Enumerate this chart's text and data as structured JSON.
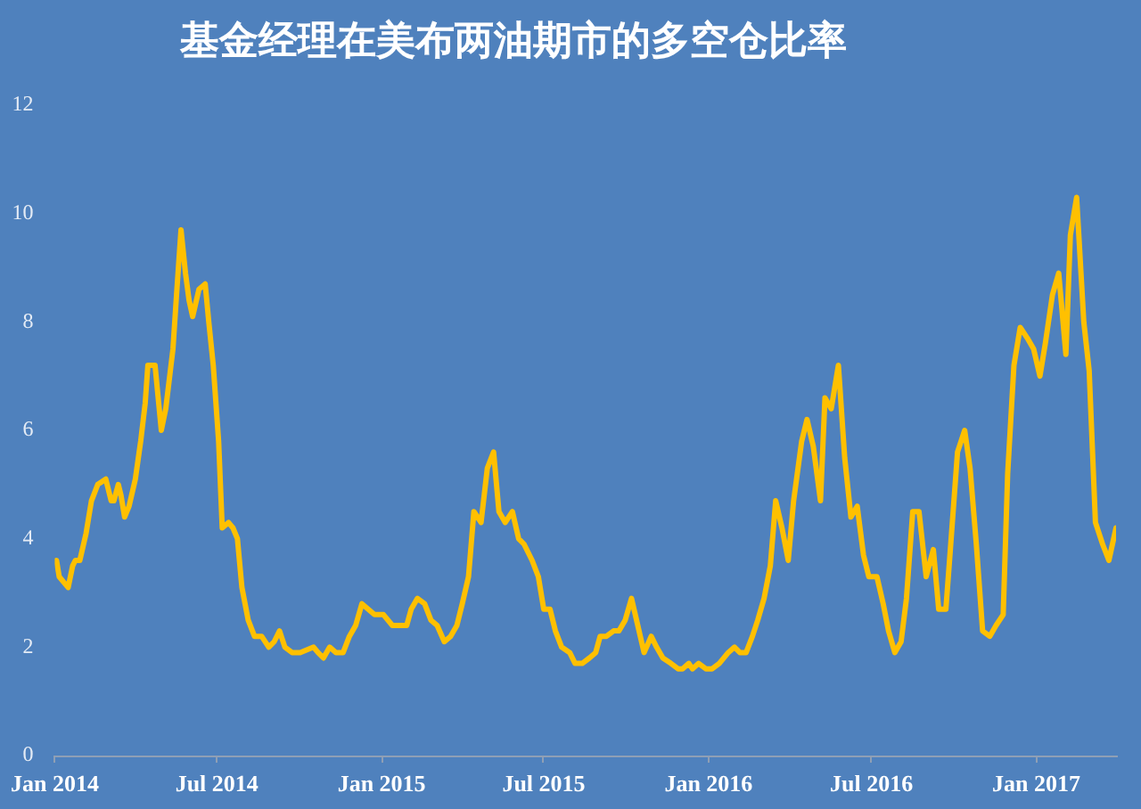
{
  "chart_data": {
    "type": "line",
    "title": "基金经理在美布两油期市的多空仓比率",
    "x": [
      "2014-01-03",
      "2014-01-06",
      "2014-01-11",
      "2014-01-16",
      "2014-01-21",
      "2014-01-24",
      "2014-01-29",
      "2014-02-05",
      "2014-02-11",
      "2014-02-18",
      "2014-02-27",
      "2014-03-05",
      "2014-03-08",
      "2014-03-13",
      "2014-03-16",
      "2014-03-20",
      "2014-03-25",
      "2014-04-01",
      "2014-04-07",
      "2014-04-12",
      "2014-04-15",
      "2014-04-23",
      "2014-04-30",
      "2014-05-05",
      "2014-05-13",
      "2014-05-17",
      "2014-05-22",
      "2014-05-27",
      "2014-05-31",
      "2014-06-04",
      "2014-06-11",
      "2014-06-18",
      "2014-06-22",
      "2014-06-27",
      "2014-07-03",
      "2014-07-07",
      "2014-07-14",
      "2014-07-19",
      "2014-07-24",
      "2014-07-29",
      "2014-08-05",
      "2014-08-12",
      "2014-08-20",
      "2014-08-28",
      "2014-09-03",
      "2014-09-09",
      "2014-09-15",
      "2014-09-23",
      "2014-10-02",
      "2014-10-17",
      "2014-10-22",
      "2014-10-28",
      "2014-11-04",
      "2014-11-11",
      "2014-11-19",
      "2014-11-26",
      "2014-12-03",
      "2014-12-10",
      "2014-12-17",
      "2014-12-24",
      "2015-01-03",
      "2015-01-13",
      "2015-01-29",
      "2015-02-03",
      "2015-02-10",
      "2015-02-18",
      "2015-02-25",
      "2015-03-04",
      "2015-03-12",
      "2015-03-19",
      "2015-03-26",
      "2015-04-01",
      "2015-04-08",
      "2015-04-14",
      "2015-04-22",
      "2015-04-29",
      "2015-05-06",
      "2015-05-12",
      "2015-05-19",
      "2015-05-27",
      "2015-06-03",
      "2015-06-09",
      "2015-06-18",
      "2015-06-25",
      "2015-07-01",
      "2015-07-08",
      "2015-07-14",
      "2015-07-21",
      "2015-07-30",
      "2015-08-05",
      "2015-08-13",
      "2015-08-21",
      "2015-08-28",
      "2015-09-02",
      "2015-09-09",
      "2015-09-17",
      "2015-09-23",
      "2015-09-30",
      "2015-10-07",
      "2015-10-14",
      "2015-10-21",
      "2015-10-29",
      "2015-11-04",
      "2015-11-11",
      "2015-11-20",
      "2015-11-28",
      "2015-12-03",
      "2015-12-10",
      "2015-12-14",
      "2015-12-21",
      "2015-12-29",
      "2016-01-05",
      "2016-01-13",
      "2016-01-23",
      "2016-01-30",
      "2016-02-05",
      "2016-02-12",
      "2016-02-19",
      "2016-02-25",
      "2016-03-03",
      "2016-03-10",
      "2016-03-16",
      "2016-03-23",
      "2016-03-30",
      "2016-04-05",
      "2016-04-14",
      "2016-04-20",
      "2016-04-27",
      "2016-05-05",
      "2016-05-10",
      "2016-05-17",
      "2016-05-25",
      "2016-06-01",
      "2016-06-08",
      "2016-06-15",
      "2016-06-22",
      "2016-06-28",
      "2016-07-07",
      "2016-07-14",
      "2016-07-20",
      "2016-07-27",
      "2016-08-03",
      "2016-08-09",
      "2016-08-16",
      "2016-08-23",
      "2016-08-31",
      "2016-09-08",
      "2016-09-14",
      "2016-09-22",
      "2016-09-27",
      "2016-10-05",
      "2016-10-13",
      "2016-10-19",
      "2016-10-26",
      "2016-11-02",
      "2016-11-10",
      "2016-11-17",
      "2016-11-25",
      "2016-11-30",
      "2016-12-07",
      "2016-12-14",
      "2016-12-22",
      "2016-12-29",
      "2017-01-05",
      "2017-01-11",
      "2017-01-19",
      "2017-01-26",
      "2017-02-03",
      "2017-02-08",
      "2017-02-15",
      "2017-02-23",
      "2017-03-01",
      "2017-03-08",
      "2017-03-16",
      "2017-03-23",
      "2017-03-31"
    ],
    "values": [
      3.6,
      3.3,
      3.2,
      3.1,
      3.5,
      3.6,
      3.6,
      4.1,
      4.7,
      5.0,
      5.1,
      4.7,
      4.7,
      5.0,
      4.8,
      4.4,
      4.6,
      5.1,
      5.8,
      6.5,
      7.2,
      7.2,
      6.0,
      6.4,
      7.5,
      8.5,
      9.7,
      8.9,
      8.4,
      8.1,
      8.6,
      8.7,
      8.0,
      7.2,
      5.8,
      4.2,
      4.3,
      4.2,
      4.0,
      3.1,
      2.5,
      2.2,
      2.2,
      2.0,
      2.1,
      2.3,
      2.0,
      1.9,
      1.9,
      2.0,
      1.9,
      1.8,
      2.0,
      1.9,
      1.9,
      2.2,
      2.4,
      2.8,
      2.7,
      2.6,
      2.6,
      2.4,
      2.4,
      2.7,
      2.9,
      2.8,
      2.5,
      2.4,
      2.1,
      2.2,
      2.4,
      2.8,
      3.3,
      4.5,
      4.3,
      5.3,
      5.6,
      4.5,
      4.3,
      4.5,
      4.0,
      3.9,
      3.6,
      3.3,
      2.7,
      2.7,
      2.3,
      2.0,
      1.9,
      1.7,
      1.7,
      1.8,
      1.9,
      2.2,
      2.2,
      2.3,
      2.3,
      2.5,
      2.9,
      2.4,
      1.9,
      2.2,
      2.0,
      1.8,
      1.7,
      1.6,
      1.6,
      1.7,
      1.6,
      1.7,
      1.6,
      1.6,
      1.7,
      1.9,
      2.0,
      1.9,
      1.9,
      2.2,
      2.5,
      2.9,
      3.5,
      4.7,
      4.2,
      3.6,
      4.7,
      5.8,
      6.2,
      5.7,
      4.7,
      6.6,
      6.4,
      7.2,
      5.5,
      4.4,
      4.6,
      3.7,
      3.3,
      3.3,
      2.8,
      2.3,
      1.9,
      2.1,
      2.9,
      4.5,
      4.5,
      3.3,
      3.8,
      2.7,
      2.7,
      3.8,
      5.6,
      6.0,
      5.3,
      3.9,
      2.3,
      2.2,
      2.4,
      2.6,
      5.2,
      7.2,
      7.9,
      7.7,
      7.5,
      7.0,
      7.6,
      8.5,
      8.9,
      7.4,
      9.6,
      10.3,
      8.0,
      7.1,
      4.3,
      3.9,
      3.6,
      4.2
    ],
    "color": "#ffc000",
    "xlim": [
      "2014-01-01",
      "2017-03-31"
    ],
    "xticks": [
      {
        "value": "2014-01",
        "label": "Jan 2014"
      },
      {
        "value": "2014-07",
        "label": "Jul 2014"
      },
      {
        "value": "2015-01",
        "label": "Jan 2015"
      },
      {
        "value": "2015-07",
        "label": "Jul 2015"
      },
      {
        "value": "2016-01",
        "label": "Jan 2016"
      },
      {
        "value": "2016-07",
        "label": "Jul 2016"
      },
      {
        "value": "2017-01",
        "label": "Jan 2017"
      }
    ],
    "ylim": [
      0,
      12
    ],
    "yticks": [
      0,
      2,
      4,
      6,
      8,
      10,
      12
    ]
  }
}
